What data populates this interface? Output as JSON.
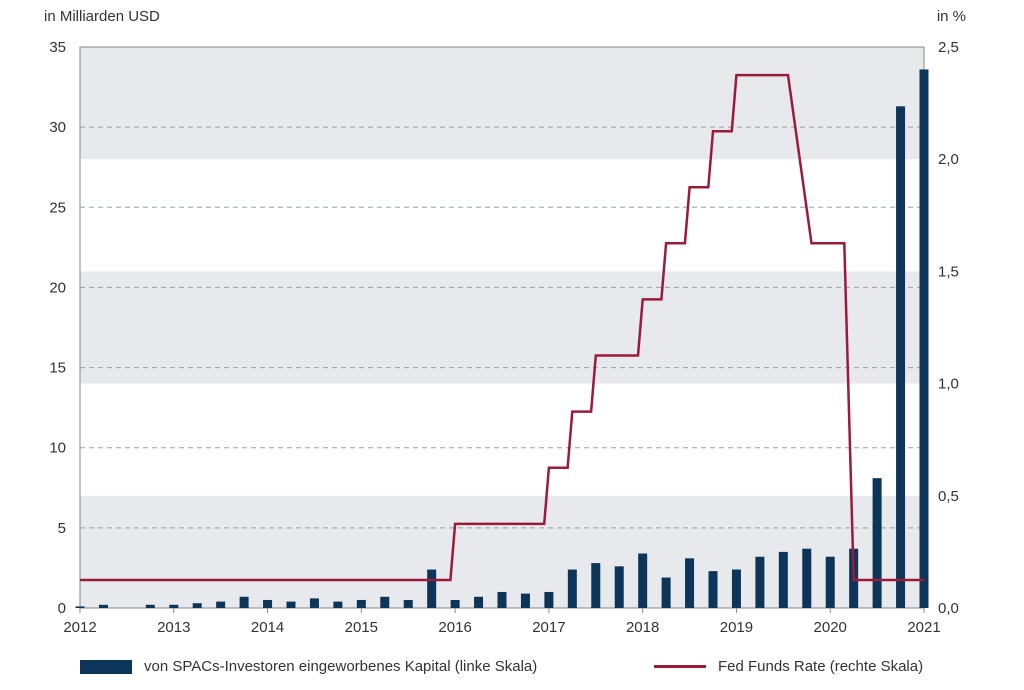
{
  "chart_data": {
    "type": "bar",
    "left_axis_label": "in Milliarden USD",
    "right_axis_label": "in %",
    "y_left_ticks": [
      "0",
      "5",
      "10",
      "15",
      "20",
      "25",
      "30",
      "35"
    ],
    "y_right_ticks": [
      "0,0",
      "0,5",
      "1,0",
      "1,5",
      "2,0",
      "2,5"
    ],
    "x_ticks": [
      "2012",
      "2013",
      "2014",
      "2015",
      "2016",
      "2017",
      "2018",
      "2019",
      "2020",
      "2021"
    ],
    "ylim_left": [
      0,
      35
    ],
    "ylim_right": [
      0,
      2.5
    ],
    "xlim": [
      2012.0,
      2021.0
    ],
    "colors": {
      "bars": "#0d3559",
      "line": "#9b1b3a",
      "band": "#e8e9ec",
      "grid": "#9aa0a6"
    },
    "series": [
      {
        "name": "von SPACs-Investoren eingeworbenes Kapital (linke Skala)",
        "axis": "left",
        "style": "bar",
        "x": [
          2012.0,
          2012.25,
          2012.5,
          2012.75,
          2013.0,
          2013.25,
          2013.5,
          2013.75,
          2014.0,
          2014.25,
          2014.5,
          2014.75,
          2015.0,
          2015.25,
          2015.5,
          2015.75,
          2016.0,
          2016.25,
          2016.5,
          2016.75,
          2017.0,
          2017.25,
          2017.5,
          2017.75,
          2018.0,
          2018.25,
          2018.5,
          2018.75,
          2019.0,
          2019.25,
          2019.5,
          2019.75,
          2020.0,
          2020.25,
          2020.5,
          2020.75,
          2021.0
        ],
        "values": [
          0.1,
          0.2,
          0.0,
          0.2,
          0.2,
          0.3,
          0.4,
          0.7,
          0.5,
          0.4,
          0.6,
          0.4,
          0.5,
          0.7,
          0.5,
          2.4,
          0.5,
          0.7,
          1.0,
          0.9,
          1.0,
          2.4,
          2.8,
          2.6,
          3.4,
          1.9,
          3.1,
          2.3,
          2.4,
          3.2,
          3.5,
          3.7,
          3.2,
          3.7,
          8.1,
          31.3,
          33.6
        ]
      },
      {
        "name": "Fed Funds Rate (rechte Skala)",
        "axis": "right",
        "style": "step-line",
        "points": [
          [
            2012.0,
            0.125
          ],
          [
            2015.95,
            0.125
          ],
          [
            2016.0,
            0.375
          ],
          [
            2016.95,
            0.375
          ],
          [
            2017.0,
            0.625
          ],
          [
            2017.2,
            0.625
          ],
          [
            2017.25,
            0.875
          ],
          [
            2017.45,
            0.875
          ],
          [
            2017.5,
            1.125
          ],
          [
            2017.95,
            1.125
          ],
          [
            2018.0,
            1.375
          ],
          [
            2018.2,
            1.375
          ],
          [
            2018.25,
            1.625
          ],
          [
            2018.45,
            1.625
          ],
          [
            2018.5,
            1.875
          ],
          [
            2018.7,
            1.875
          ],
          [
            2018.75,
            2.125
          ],
          [
            2018.95,
            2.125
          ],
          [
            2019.0,
            2.375
          ],
          [
            2019.55,
            2.375
          ],
          [
            2019.8,
            1.625
          ],
          [
            2020.15,
            1.625
          ],
          [
            2020.25,
            0.125
          ],
          [
            2021.0,
            0.125
          ]
        ]
      }
    ]
  }
}
